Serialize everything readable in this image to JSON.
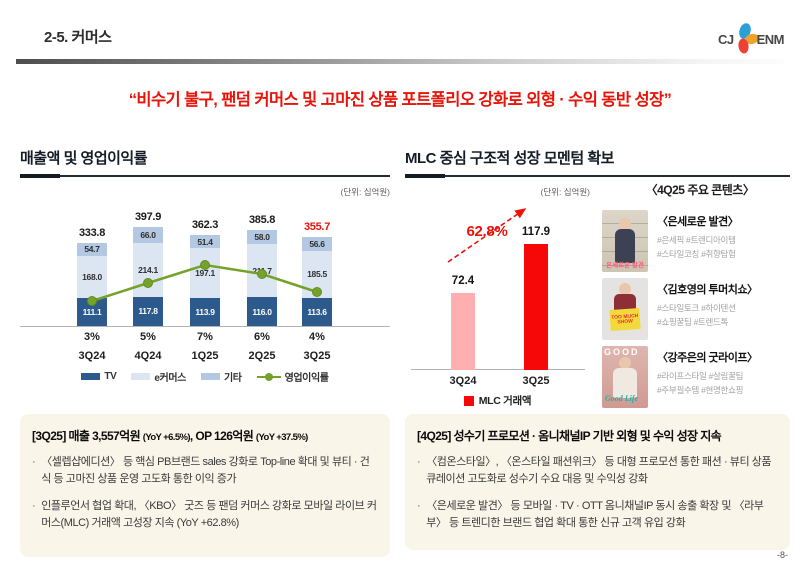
{
  "header": {
    "breadcrumb": "2-5. 커머스",
    "logo_cj": "CJ",
    "logo_enm": "ENM"
  },
  "headline": "“비수기 불구, 팬덤 커머스 및 고마진 상품 포트폴리오 강화로 외형 · 수익 동반 성장”",
  "left_section": {
    "title": "매출액 및 영업이익률"
  },
  "right_section": {
    "title": "MLC 중심 구조적 성장 모멘텀 확보"
  },
  "chart_data": [
    {
      "type": "bar",
      "title": "매출액 및 영업이익률",
      "unit": "(단위: 십억원)",
      "categories": [
        "3Q24",
        "4Q24",
        "1Q25",
        "2Q25",
        "3Q25"
      ],
      "series": [
        {
          "name": "TV",
          "values": [
            111.1,
            117.8,
            113.9,
            116.0,
            113.6
          ],
          "color": "#2d5a8c",
          "label_color": "#ffffff"
        },
        {
          "name": "e커머스",
          "values": [
            168.0,
            214.1,
            197.1,
            211.7,
            185.5
          ],
          "color": "#dce6f2",
          "label_color": "#2f2f2f"
        },
        {
          "name": "기타",
          "values": [
            54.7,
            66.0,
            51.4,
            58.0,
            56.6
          ],
          "color": "#b3c8e2",
          "label_color": "#2f2f2f"
        }
      ],
      "totals": [
        333.8,
        397.9,
        362.3,
        385.8,
        355.7
      ],
      "total_colors": [
        "#1a1a1a",
        "#1a1a1a",
        "#1a1a1a",
        "#1a1a1a",
        "#e8140a"
      ],
      "line_series": {
        "name": "영업이익률",
        "values_pct": [
          3,
          5,
          7,
          6,
          4
        ],
        "labels": [
          "3%",
          "5%",
          "7%",
          "6%",
          "4%"
        ],
        "color": "#76a22c"
      },
      "legend_position": "bottom",
      "grid": false
    },
    {
      "type": "bar",
      "title": "MLC 거래액",
      "unit": "(단위: 십억원)",
      "categories": [
        "3Q24",
        "3Q25"
      ],
      "values": [
        72.4,
        117.9
      ],
      "colors": [
        "#ffafaf",
        "#f70808"
      ],
      "growth_label": "62.8%",
      "legend": "MLC 거래액",
      "legend_position": "bottom",
      "grid": false
    }
  ],
  "contents_panel": {
    "heading": "〈4Q25 주요 콘텐츠〉",
    "items": [
      {
        "title": "〈은세로운 발견〉",
        "tags1": "#은세픽 #트렌디아이템",
        "tags2": "#스타일코칭  #취향탐험",
        "thumb_text": "은세로운 발견"
      },
      {
        "title": "〈김호영의 투머치쇼〉",
        "tags1": "#스타일토크 #하이텐션",
        "tags2": "#쇼핑꿀팁 #트렌드톡",
        "thumb_text": "TOO MUCH SHOW"
      },
      {
        "title": "〈강주은의 굿라이프〉",
        "tags1": "#라이프스타일 #살림꿀팁",
        "tags2": "#주부필수템 #현명한쇼핑",
        "thumb_text": "Good Life",
        "thumb_top_text": "GOOD"
      }
    ]
  },
  "box_left": {
    "t1": "[3Q25]  매출 3,557억원 ",
    "y1": "(YoY +6.5%)",
    "t2": ", OP 126억원 ",
    "y2": "(YoY +37.5%)",
    "bullets": [
      "〈셀렙샵에디션〉 등 핵심 PB브랜드 sales 강화로 Top-line 확대 및 뷰티 · 건식 등 고마진 상품 운영 고도화 통한 이익 증가",
      "인플루언서 협업 확대, 〈KBO〉 굿즈 등 팬덤 커머스 강화로 모바일 라이브 커머스(MLC) 거래액 고성장 지속 (YoY +62.8%)"
    ]
  },
  "box_right": {
    "title": "[4Q25] 성수기 프로모션 · 옴니채널IP 기반 외형 및 수익 성장 지속",
    "bullets": [
      "〈컴온스타일〉, 〈온스타일 패션위크〉 등 대형 프로모션 통한 패션 · 뷰티 상품 큐레이션 고도화로 성수기 수요 대응 및 수익성 강화",
      "〈은세로운 발견〉 등 모바일 · TV · OTT 옴니채널IP 동시 송출 확장 및 〈라부부〉 등 트렌디한 브랜드 협업 확대 통한 신규 고객 유입 강화"
    ]
  },
  "footer": {
    "page": "-8-"
  }
}
